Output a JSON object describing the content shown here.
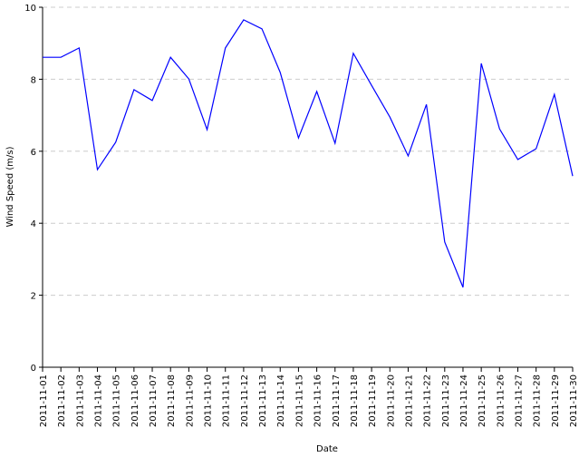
{
  "chart_data": {
    "type": "line",
    "x": [
      "2011-11-01",
      "2011-11-02",
      "2011-11-03",
      "2011-11-04",
      "2011-11-05",
      "2011-11-06",
      "2011-11-07",
      "2011-11-08",
      "2011-11-09",
      "2011-11-10",
      "2011-11-11",
      "2011-11-12",
      "2011-11-13",
      "2011-11-14",
      "2011-11-15",
      "2011-11-16",
      "2011-11-17",
      "2011-11-18",
      "2011-11-19",
      "2011-11-20",
      "2011-11-21",
      "2011-11-22",
      "2011-11-23",
      "2011-11-24",
      "2011-11-25",
      "2011-11-26",
      "2011-11-27",
      "2011-11-28",
      "2011-11-29",
      "2011-11-30"
    ],
    "values": [
      8.61,
      8.61,
      8.87,
      5.49,
      6.25,
      7.71,
      7.41,
      8.61,
      8.01,
      6.6,
      8.87,
      9.65,
      9.4,
      8.19,
      6.37,
      7.66,
      6.22,
      8.72,
      7.83,
      6.95,
      5.87,
      7.3,
      3.48,
      2.22,
      8.44,
      6.62,
      5.77,
      6.07,
      7.58,
      5.31
    ],
    "color": "#0000ff",
    "xlabel": "Date",
    "ylabel": "Wind Speed (m/s)",
    "ylim": [
      0,
      10
    ],
    "yticks": [
      0,
      2,
      4,
      6,
      8,
      10
    ],
    "grid": true
  }
}
